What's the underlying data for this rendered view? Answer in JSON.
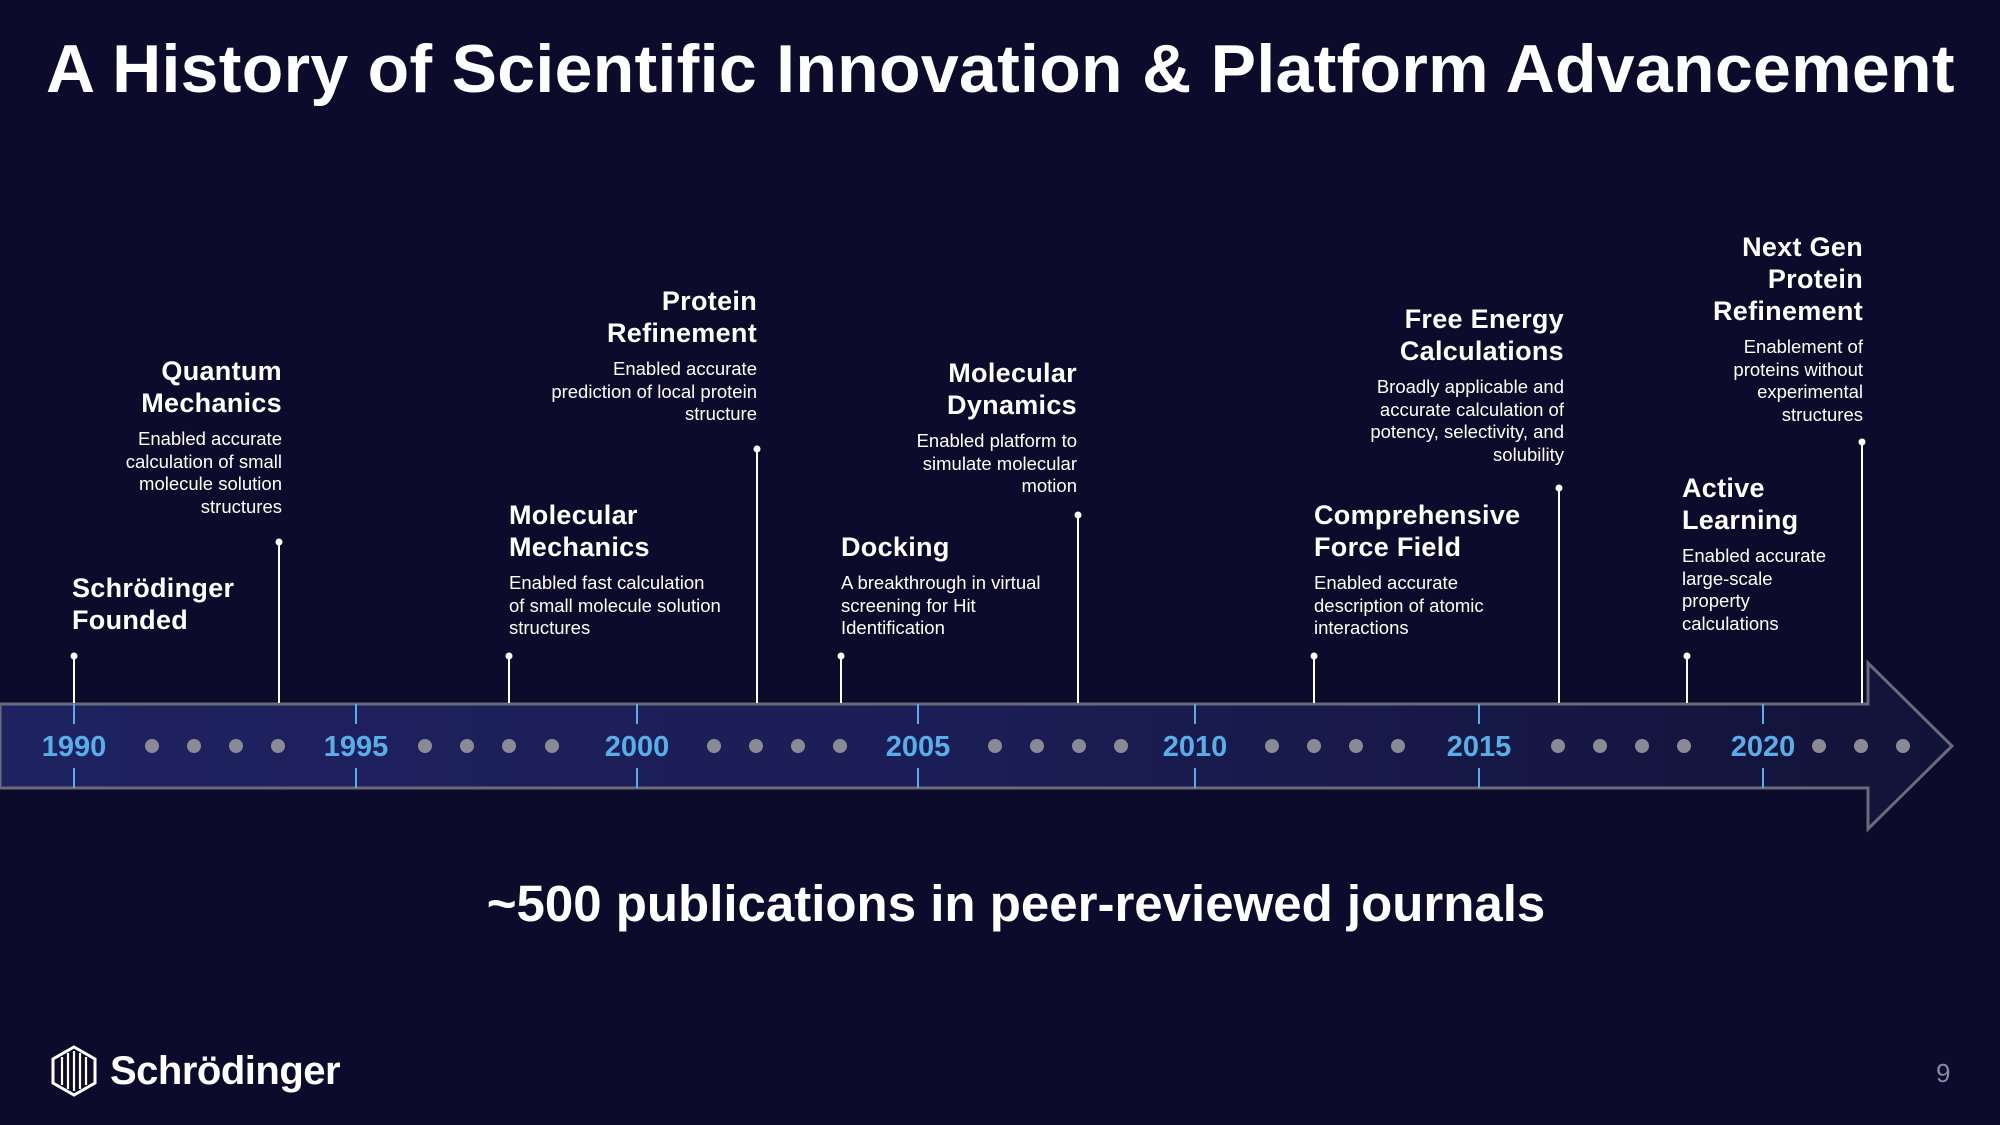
{
  "title": "A History of Scientific Innovation & Platform Advancement",
  "years": [
    "1990",
    "1995",
    "2000",
    "2005",
    "2010",
    "2015",
    "2020"
  ],
  "events": [
    {
      "title": "Schrödinger\nFounded",
      "desc": ""
    },
    {
      "title": "Quantum\nMechanics",
      "desc": "Enabled accurate\ncalculation of small\nmolecule solution\nstructures"
    },
    {
      "title": "Molecular\nMechanics",
      "desc": "Enabled fast calculation\nof small molecule solution\nstructures"
    },
    {
      "title": "Protein\nRefinement",
      "desc": "Enabled accurate\nprediction of local protein\nstructure"
    },
    {
      "title": "Docking",
      "desc": "A breakthrough in virtual\nscreening for Hit\nIdentification"
    },
    {
      "title": "Molecular\nDynamics",
      "desc": "Enabled platform to\nsimulate  molecular\nmotion"
    },
    {
      "title": "Comprehensive\nForce Field",
      "desc": "Enabled accurate\ndescription of atomic\ninteractions"
    },
    {
      "title": "Free Energy\nCalculations",
      "desc": "Broadly applicable and\naccurate calculation of\npotency, selectivity, and\nsolubility"
    },
    {
      "title": "Active\nLearning",
      "desc": "Enabled accurate\nlarge-scale\nproperty\ncalculations"
    },
    {
      "title": "Next Gen\nProtein\nRefinement",
      "desc": "Enablement of\nproteins without\nexperimental\nstructures"
    }
  ],
  "footer": "~500 publications in peer-reviewed journals",
  "logo": {
    "text": "Schrödinger",
    "icon": "schrodinger-logo-icon"
  },
  "page_number": "9",
  "colors": {
    "background": "#0c0b2b",
    "year_label": "#5aaee8",
    "arrow_fill": "#1a1d56",
    "dot": "#8a8a96"
  }
}
